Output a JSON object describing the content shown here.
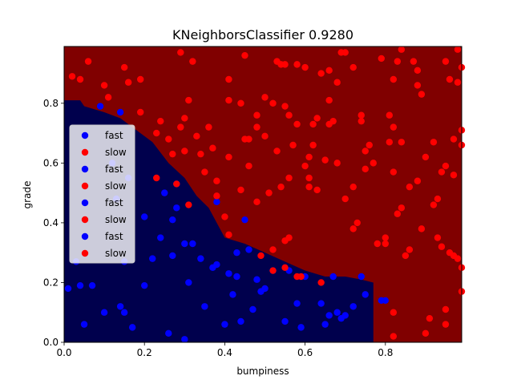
{
  "chart_data": {
    "type": "scatter",
    "title": "KNeighborsClassifier 0.9280",
    "xlabel": "bumpiness",
    "ylabel": "grade",
    "xlim": [
      0.0,
      0.99
    ],
    "ylim": [
      0.0,
      0.99
    ],
    "xticks": [
      0.0,
      0.2,
      0.4,
      0.6,
      0.8
    ],
    "yticks": [
      0.0,
      0.2,
      0.4,
      0.6,
      0.8
    ],
    "xtick_labels": [
      "0.0",
      "0.2",
      "0.4",
      "0.6",
      "0.8"
    ],
    "ytick_labels": [
      "0.0",
      "0.2",
      "0.4",
      "0.6",
      "0.8"
    ],
    "grid": false,
    "legend_position": "left",
    "colors": {
      "fast_region": "#00004d",
      "slow_region": "#800000",
      "fast_point": "#0000ff",
      "slow_point": "#ff0000"
    },
    "legend": [
      {
        "label": "fast",
        "color": "#0000ff"
      },
      {
        "label": "slow",
        "color": "#ff0000"
      },
      {
        "label": "fast",
        "color": "#0000ff"
      },
      {
        "label": "slow",
        "color": "#ff0000"
      },
      {
        "label": "fast",
        "color": "#0000ff"
      },
      {
        "label": "slow",
        "color": "#ff0000"
      },
      {
        "label": "fast",
        "color": "#0000ff"
      },
      {
        "label": "slow",
        "color": "#ff0000"
      }
    ],
    "decision_boundary": [
      [
        0.0,
        0.81
      ],
      [
        0.04,
        0.81
      ],
      [
        0.05,
        0.79
      ],
      [
        0.1,
        0.77
      ],
      [
        0.14,
        0.75
      ],
      [
        0.18,
        0.71
      ],
      [
        0.22,
        0.67
      ],
      [
        0.26,
        0.6
      ],
      [
        0.3,
        0.55
      ],
      [
        0.33,
        0.49
      ],
      [
        0.36,
        0.45
      ],
      [
        0.38,
        0.4
      ],
      [
        0.4,
        0.35
      ],
      [
        0.45,
        0.33
      ],
      [
        0.5,
        0.3
      ],
      [
        0.55,
        0.27
      ],
      [
        0.6,
        0.24
      ],
      [
        0.65,
        0.22
      ],
      [
        0.7,
        0.22
      ],
      [
        0.74,
        0.21
      ],
      [
        0.77,
        0.2
      ],
      [
        0.77,
        0.0
      ]
    ],
    "series": [
      {
        "label": "fast",
        "points": [
          [
            0.01,
            0.18
          ],
          [
            0.03,
            0.27
          ],
          [
            0.04,
            0.19
          ],
          [
            0.05,
            0.06
          ],
          [
            0.07,
            0.19
          ],
          [
            0.09,
            0.79
          ],
          [
            0.1,
            0.1
          ],
          [
            0.12,
            0.6
          ],
          [
            0.13,
            0.48
          ],
          [
            0.14,
            0.77
          ],
          [
            0.14,
            0.12
          ],
          [
            0.15,
            0.1
          ],
          [
            0.15,
            0.27
          ],
          [
            0.16,
            0.55
          ],
          [
            0.17,
            0.05
          ],
          [
            0.2,
            0.42
          ],
          [
            0.2,
            0.19
          ],
          [
            0.22,
            0.28
          ],
          [
            0.24,
            0.35
          ],
          [
            0.25,
            0.5
          ],
          [
            0.26,
            0.03
          ],
          [
            0.27,
            0.41
          ],
          [
            0.27,
            0.29
          ],
          [
            0.28,
            0.45
          ],
          [
            0.28,
            0.53
          ],
          [
            0.3,
            0.33
          ],
          [
            0.3,
            0.01
          ],
          [
            0.31,
            0.2
          ],
          [
            0.32,
            0.33
          ],
          [
            0.34,
            0.28
          ],
          [
            0.35,
            0.12
          ],
          [
            0.37,
            0.25
          ],
          [
            0.38,
            0.47
          ],
          [
            0.38,
            0.26
          ],
          [
            0.4,
            0.06
          ],
          [
            0.41,
            0.23
          ],
          [
            0.42,
            0.16
          ],
          [
            0.43,
            0.3
          ],
          [
            0.43,
            0.22
          ],
          [
            0.44,
            0.07
          ],
          [
            0.45,
            0.41
          ],
          [
            0.46,
            0.31
          ],
          [
            0.47,
            0.11
          ],
          [
            0.48,
            0.21
          ],
          [
            0.49,
            0.17
          ],
          [
            0.5,
            0.18
          ],
          [
            0.52,
            0.24
          ],
          [
            0.55,
            0.07
          ],
          [
            0.56,
            0.24
          ],
          [
            0.58,
            0.13
          ],
          [
            0.59,
            0.05
          ],
          [
            0.6,
            0.22
          ],
          [
            0.64,
            0.13
          ],
          [
            0.65,
            0.06
          ],
          [
            0.66,
            0.09
          ],
          [
            0.67,
            0.22
          ],
          [
            0.68,
            0.1
          ],
          [
            0.69,
            0.08
          ],
          [
            0.7,
            0.09
          ],
          [
            0.72,
            0.12
          ],
          [
            0.74,
            0.22
          ],
          [
            0.75,
            0.16
          ],
          [
            0.79,
            0.14
          ],
          [
            0.8,
            0.14
          ]
        ]
      },
      {
        "label": "slow",
        "points": [
          [
            0.02,
            0.89
          ],
          [
            0.04,
            0.88
          ],
          [
            0.06,
            0.94
          ],
          [
            0.1,
            0.86
          ],
          [
            0.11,
            0.82
          ],
          [
            0.15,
            0.92
          ],
          [
            0.16,
            0.87
          ],
          [
            0.19,
            0.88
          ],
          [
            0.19,
            0.77
          ],
          [
            0.23,
            0.7
          ],
          [
            0.23,
            0.55
          ],
          [
            0.24,
            0.74
          ],
          [
            0.26,
            0.68
          ],
          [
            0.27,
            0.63
          ],
          [
            0.28,
            0.53
          ],
          [
            0.29,
            0.97
          ],
          [
            0.29,
            0.72
          ],
          [
            0.3,
            0.64
          ],
          [
            0.3,
            0.75
          ],
          [
            0.31,
            0.81
          ],
          [
            0.31,
            0.46
          ],
          [
            0.32,
            0.94
          ],
          [
            0.33,
            0.69
          ],
          [
            0.34,
            0.63
          ],
          [
            0.35,
            0.57
          ],
          [
            0.36,
            0.72
          ],
          [
            0.37,
            0.65
          ],
          [
            0.38,
            0.54
          ],
          [
            0.38,
            0.49
          ],
          [
            0.4,
            0.42
          ],
          [
            0.41,
            0.88
          ],
          [
            0.41,
            0.81
          ],
          [
            0.41,
            0.62
          ],
          [
            0.41,
            0.36
          ],
          [
            0.44,
            0.8
          ],
          [
            0.44,
            0.51
          ],
          [
            0.45,
            0.68
          ],
          [
            0.45,
            0.96
          ],
          [
            0.46,
            0.59
          ],
          [
            0.46,
            0.68
          ],
          [
            0.48,
            0.76
          ],
          [
            0.48,
            0.72
          ],
          [
            0.48,
            0.47
          ],
          [
            0.49,
            0.29
          ],
          [
            0.5,
            0.82
          ],
          [
            0.5,
            0.69
          ],
          [
            0.51,
            0.5
          ],
          [
            0.52,
            0.8
          ],
          [
            0.52,
            0.24
          ],
          [
            0.52,
            0.31
          ],
          [
            0.53,
            0.64
          ],
          [
            0.53,
            0.94
          ],
          [
            0.54,
            0.93
          ],
          [
            0.54,
            0.52
          ],
          [
            0.55,
            0.79
          ],
          [
            0.55,
            0.93
          ],
          [
            0.55,
            0.34
          ],
          [
            0.55,
            0.25
          ],
          [
            0.56,
            0.76
          ],
          [
            0.56,
            0.55
          ],
          [
            0.56,
            0.35
          ],
          [
            0.57,
            0.66
          ],
          [
            0.58,
            0.93
          ],
          [
            0.58,
            0.73
          ],
          [
            0.58,
            0.22
          ],
          [
            0.59,
            0.22
          ],
          [
            0.6,
            0.92
          ],
          [
            0.6,
            0.59
          ],
          [
            0.61,
            0.52
          ],
          [
            0.61,
            0.62
          ],
          [
            0.61,
            0.55
          ],
          [
            0.62,
            0.73
          ],
          [
            0.62,
            0.66
          ],
          [
            0.63,
            0.75
          ],
          [
            0.63,
            0.51
          ],
          [
            0.64,
            0.9
          ],
          [
            0.64,
            0.2
          ],
          [
            0.65,
            0.61
          ],
          [
            0.66,
            0.91
          ],
          [
            0.66,
            0.81
          ],
          [
            0.66,
            0.73
          ],
          [
            0.67,
            0.74
          ],
          [
            0.68,
            0.6
          ],
          [
            0.68,
            0.87
          ],
          [
            0.69,
            0.97
          ],
          [
            0.7,
            0.97
          ],
          [
            0.7,
            0.48
          ],
          [
            0.72,
            0.92
          ],
          [
            0.72,
            0.52
          ],
          [
            0.72,
            0.38
          ],
          [
            0.73,
            0.4
          ],
          [
            0.74,
            0.76
          ],
          [
            0.74,
            0.74
          ],
          [
            0.75,
            0.58
          ],
          [
            0.75,
            0.64
          ],
          [
            0.76,
            0.66
          ],
          [
            0.77,
            0.6
          ],
          [
            0.78,
            0.33
          ],
          [
            0.79,
            0.95
          ],
          [
            0.8,
            0.35
          ],
          [
            0.8,
            0.33
          ],
          [
            0.81,
            0.67
          ],
          [
            0.81,
            0.76
          ],
          [
            0.82,
            0.57
          ],
          [
            0.82,
            0.88
          ],
          [
            0.82,
            0.02
          ],
          [
            0.82,
            0.1
          ],
          [
            0.82,
            0.72
          ],
          [
            0.83,
            0.94
          ],
          [
            0.83,
            0.43
          ],
          [
            0.84,
            0.98
          ],
          [
            0.84,
            0.45
          ],
          [
            0.84,
            0.67
          ],
          [
            0.85,
            0.29
          ],
          [
            0.86,
            0.52
          ],
          [
            0.86,
            0.31
          ],
          [
            0.87,
            0.94
          ],
          [
            0.88,
            0.91
          ],
          [
            0.88,
            0.86
          ],
          [
            0.88,
            0.54
          ],
          [
            0.89,
            0.83
          ],
          [
            0.9,
            0.62
          ],
          [
            0.89,
            0.38
          ],
          [
            0.9,
            0.03
          ],
          [
            0.91,
            0.08
          ],
          [
            0.92,
            0.67
          ],
          [
            0.92,
            0.46
          ],
          [
            0.93,
            0.35
          ],
          [
            0.93,
            0.48
          ],
          [
            0.94,
            0.57
          ],
          [
            0.94,
            0.32
          ],
          [
            0.95,
            0.11
          ],
          [
            0.95,
            0.06
          ],
          [
            0.95,
            0.59
          ],
          [
            0.95,
            0.94
          ],
          [
            0.96,
            0.3
          ],
          [
            0.96,
            0.88
          ],
          [
            0.97,
            0.68
          ],
          [
            0.97,
            0.29
          ],
          [
            0.97,
            0.56
          ],
          [
            0.98,
            0.98
          ],
          [
            0.98,
            0.28
          ],
          [
            0.98,
            0.87
          ],
          [
            0.99,
            0.92
          ],
          [
            0.99,
            0.71
          ],
          [
            0.99,
            0.66
          ],
          [
            0.99,
            0.17
          ],
          [
            0.99,
            0.25
          ]
        ]
      }
    ]
  }
}
